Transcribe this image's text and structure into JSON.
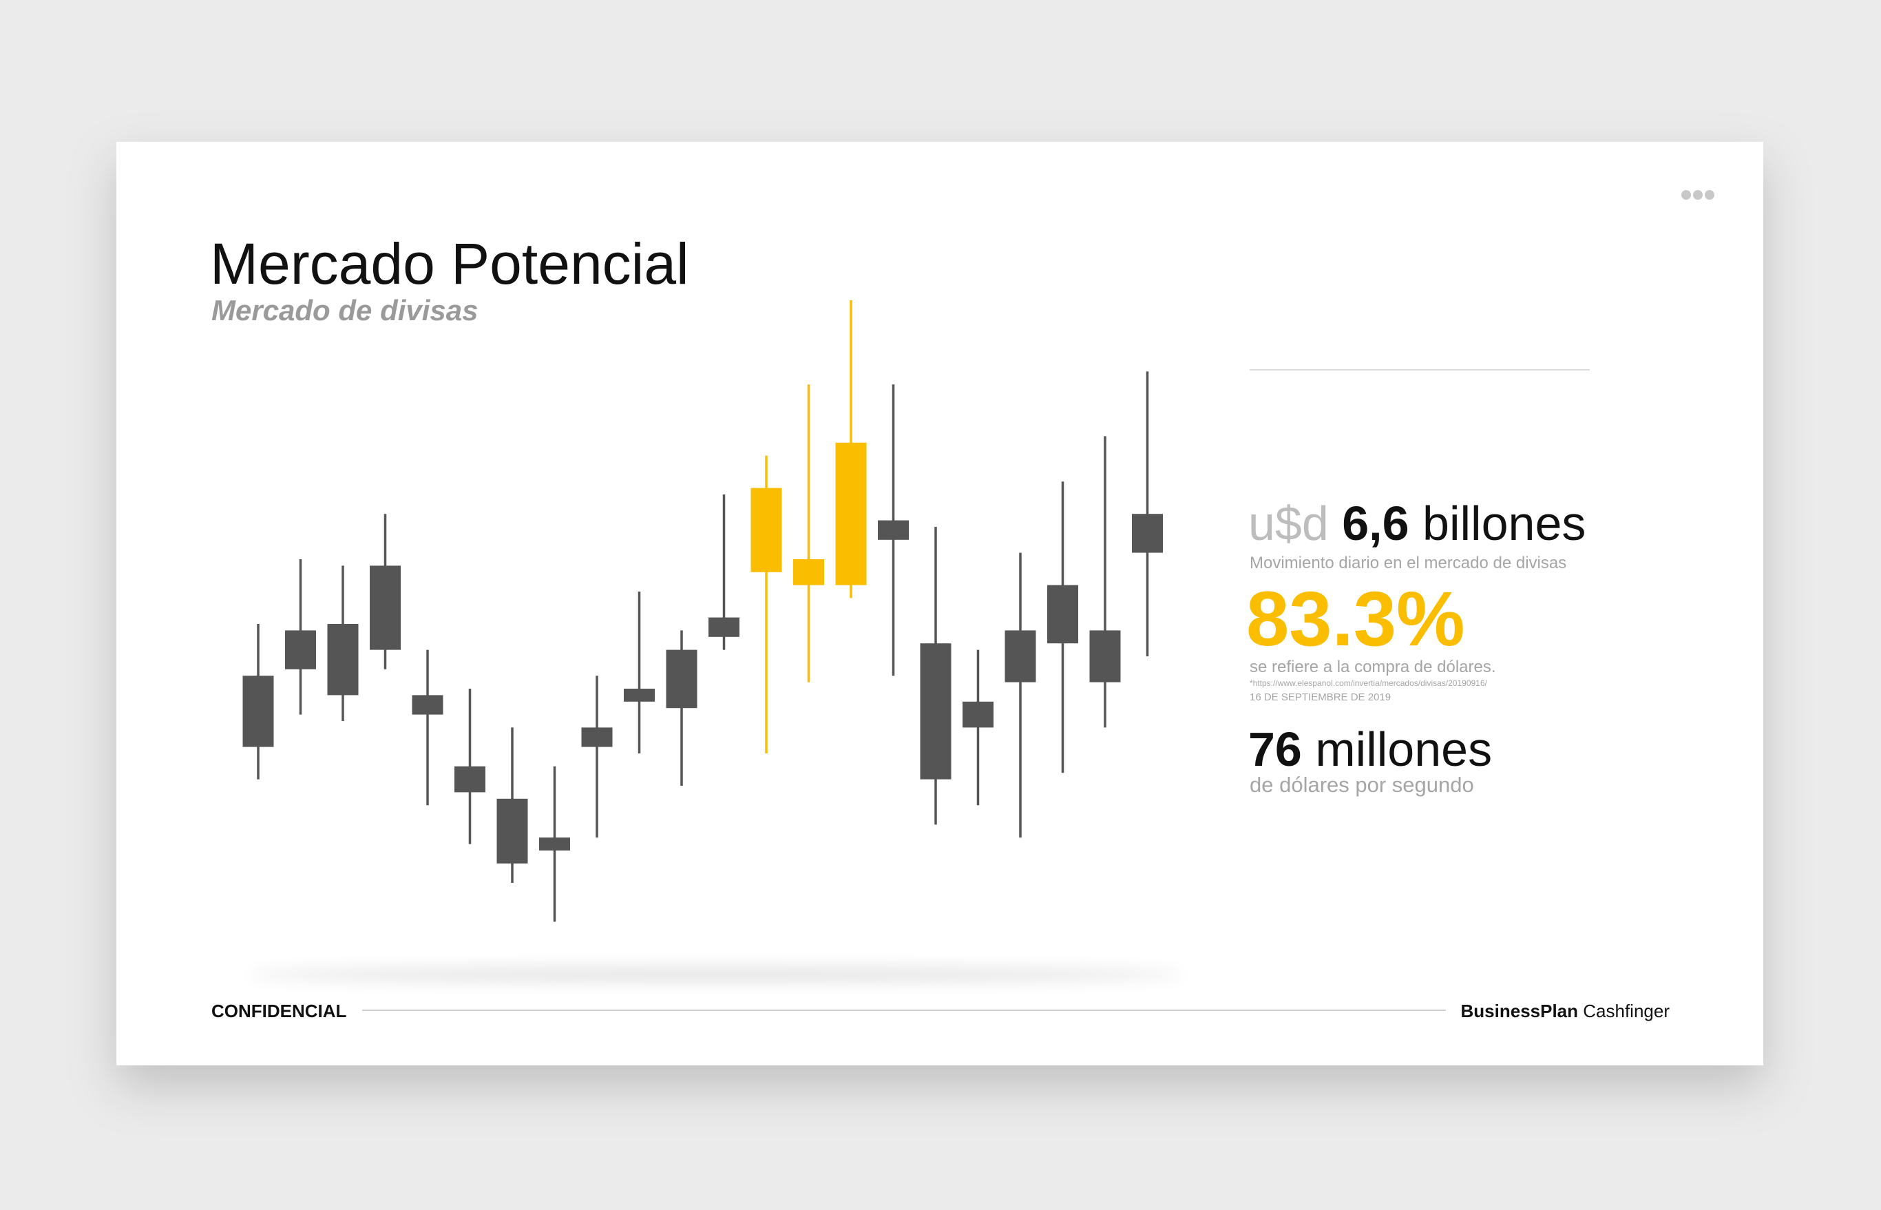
{
  "header": {
    "title": "Mercado Potencial",
    "subtitle": "Mercado de divisas"
  },
  "chart_data": {
    "type": "candlestick",
    "ylim": [
      0,
      100
    ],
    "high": [
      50,
      60,
      59,
      67,
      46,
      40,
      34,
      28,
      42,
      55,
      49,
      70,
      76,
      87,
      100,
      87,
      65,
      46,
      61,
      72,
      79,
      89
    ],
    "low": [
      26,
      36,
      35,
      43,
      22,
      16,
      10,
      4,
      17,
      30,
      25,
      46,
      30,
      41,
      54,
      42,
      19,
      22,
      17,
      27,
      34,
      45
    ],
    "open": [
      31,
      43,
      39,
      46,
      36,
      24,
      13,
      15,
      31,
      38,
      37,
      48,
      58,
      56,
      56,
      63,
      26,
      34,
      41,
      47,
      41,
      61
    ],
    "close": [
      42,
      49,
      50,
      59,
      39,
      28,
      23,
      17,
      34,
      40,
      46,
      51,
      71,
      60,
      78,
      66,
      47,
      38,
      49,
      56,
      49,
      67
    ],
    "colors": [
      "#555555",
      "#555555",
      "#555555",
      "#555555",
      "#555555",
      "#555555",
      "#555555",
      "#555555",
      "#555555",
      "#555555",
      "#555555",
      "#555555",
      "#fbbd00",
      "#fbbd00",
      "#fbbd00",
      "#555555",
      "#555555",
      "#555555",
      "#555555",
      "#555555",
      "#555555",
      "#555555"
    ]
  },
  "stats": {
    "prefix": "u$d",
    "amount": "6,6",
    "unit": "billones",
    "amount_caption": "Movimiento diario en el mercado de divisas",
    "share": "83.3%",
    "share_caption": "se refiere a la compra de dólares.",
    "source": "*https://www.elespanol.com/invertia/mercados/divisas/20190916/",
    "source_date": "16 DE SEPTIEMBRE DE 2019",
    "count": "76",
    "count_unit": "millones",
    "count_caption": "de dólares por segundo"
  },
  "footer": {
    "left": "CONFIDENCIAL",
    "brand": "BusinessPlan",
    "brand_name": "Cashfinger"
  }
}
